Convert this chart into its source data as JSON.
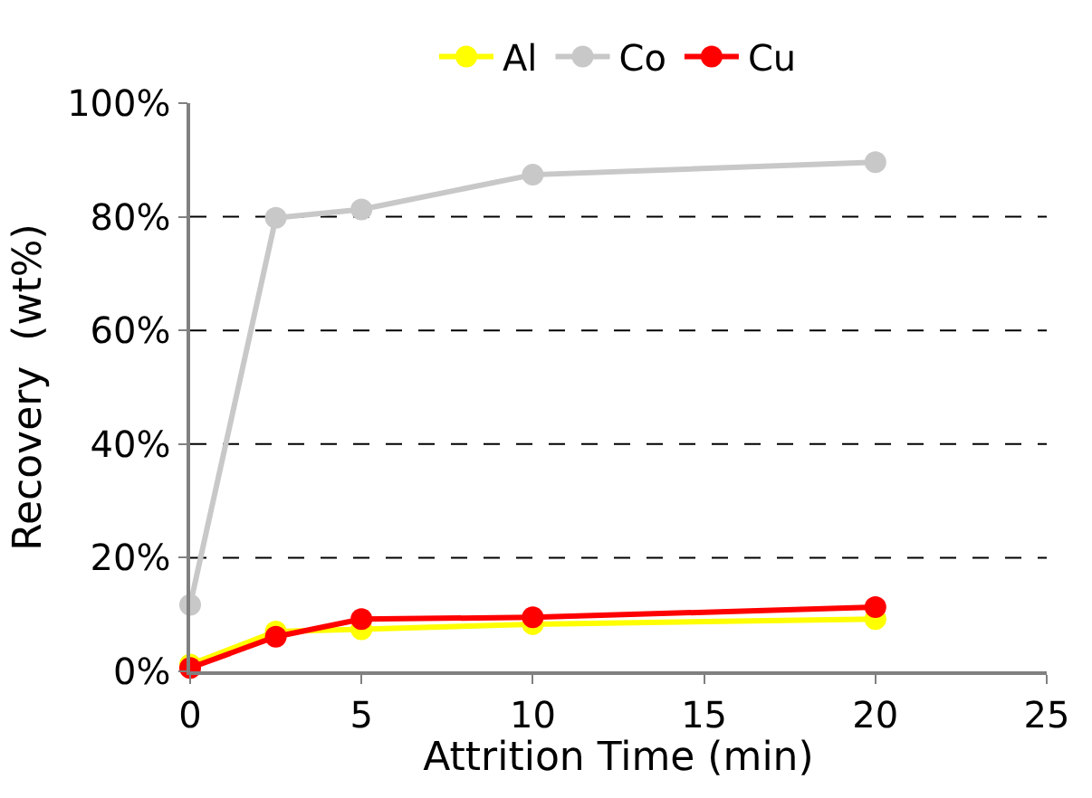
{
  "chart_data": {
    "type": "line",
    "xlabel": "Attrition Time (min)",
    "ylabel": "Recovery  (wt%)",
    "x": [
      0,
      2.5,
      5,
      10,
      20
    ],
    "series": [
      {
        "name": "Al",
        "color": "#ffff00",
        "values": [
          1.2,
          7.0,
          7.4,
          8.3,
          9.2
        ]
      },
      {
        "name": "Co",
        "color": "#c8c8c8",
        "values": [
          11.7,
          79.8,
          81.3,
          87.4,
          89.6
        ]
      },
      {
        "name": "Cu",
        "color": "#ff0000",
        "values": [
          0.6,
          6.1,
          9.2,
          9.5,
          11.3
        ]
      }
    ],
    "xlim": [
      0,
      25
    ],
    "xticks": [
      0,
      5,
      10,
      15,
      20,
      25
    ],
    "ylim": [
      0,
      100
    ],
    "yticks": [
      {
        "value": 0,
        "label": "0%"
      },
      {
        "value": 20,
        "label": "20%"
      },
      {
        "value": 40,
        "label": "40%"
      },
      {
        "value": 60,
        "label": "60%"
      },
      {
        "value": 80,
        "label": "80%"
      },
      {
        "value": 100,
        "label": "100%"
      }
    ],
    "grid": "y",
    "legend": "top",
    "marker": "circle",
    "line_style": "solid"
  }
}
